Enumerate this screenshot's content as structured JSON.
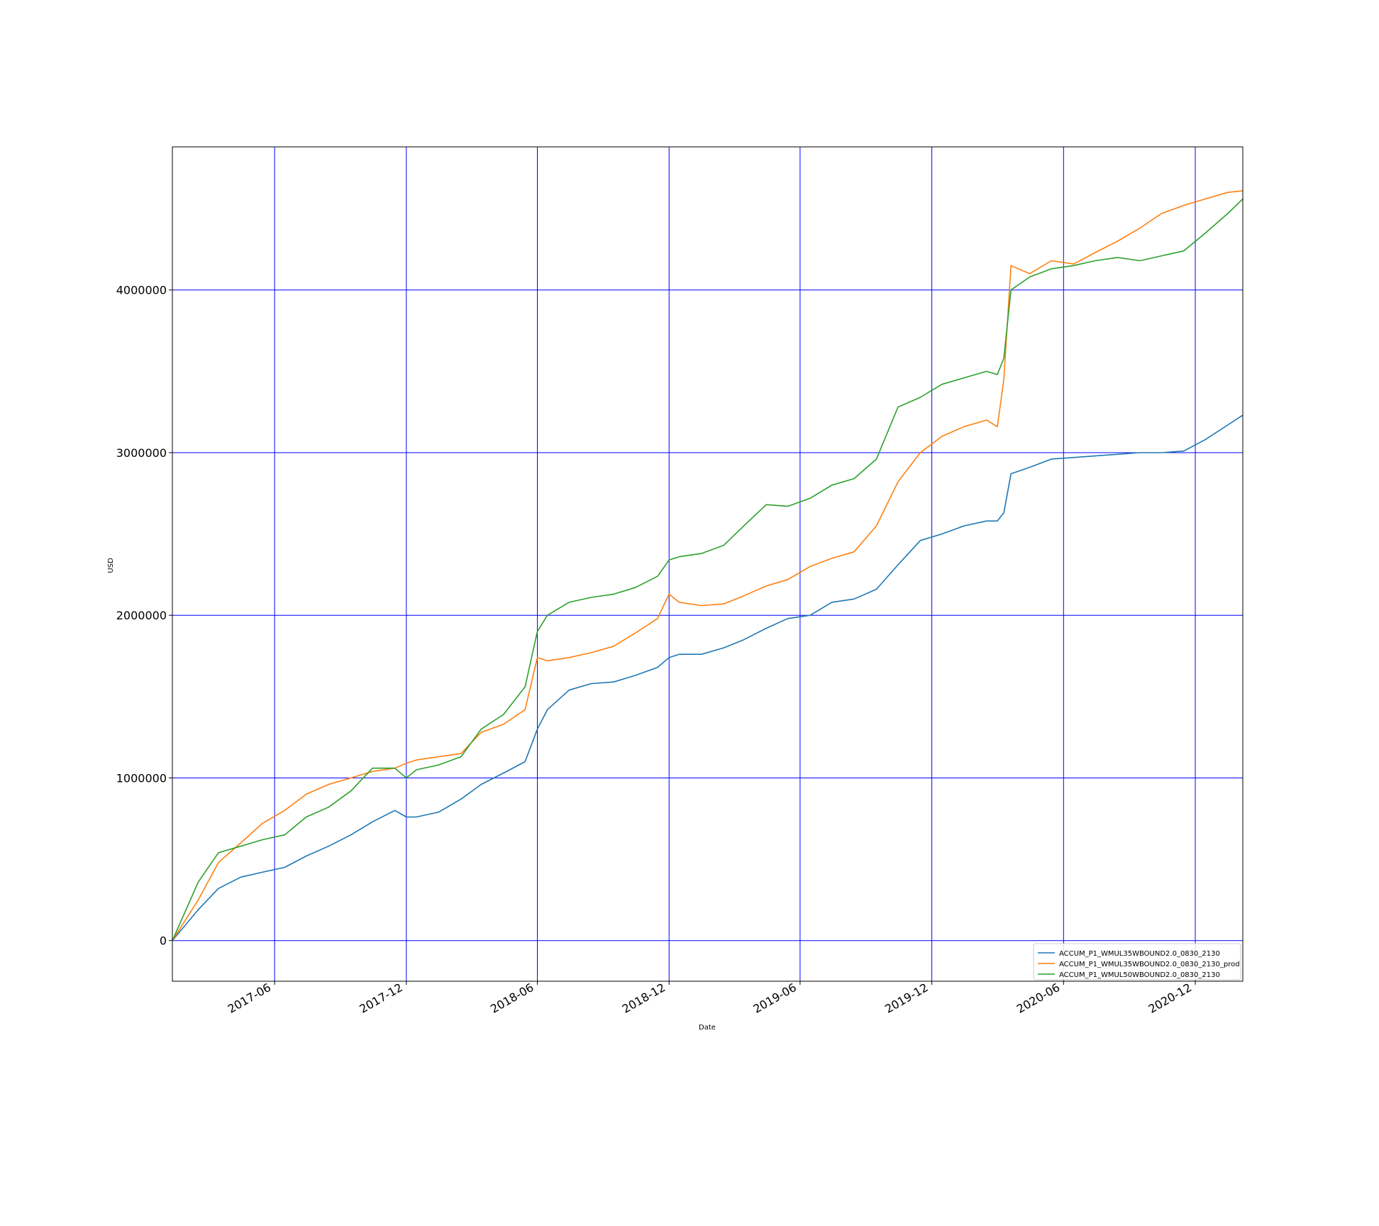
{
  "chart_data": {
    "type": "line",
    "title": "",
    "xlabel": "Date",
    "ylabel": "USD",
    "x_range": [
      "2017-01-10",
      "2021-02-05"
    ],
    "ylim": [
      -250000,
      4880000
    ],
    "grid": true,
    "grid_color": "#0000ff",
    "legend_position": "lower-right",
    "x_ticks": [
      "2017-06",
      "2017-12",
      "2018-06",
      "2018-12",
      "2019-06",
      "2019-12",
      "2020-06",
      "2020-12"
    ],
    "y_ticks": [
      0,
      1000000,
      2000000,
      3000000,
      4000000
    ],
    "y_tick_labels": [
      "0",
      "1000000",
      "2000000",
      "3000000",
      "4000000"
    ],
    "x": [
      "2017-01-10",
      "2017-02-15",
      "2017-03-15",
      "2017-04-15",
      "2017-05-15",
      "2017-06-15",
      "2017-07-15",
      "2017-08-15",
      "2017-09-15",
      "2017-10-15",
      "2017-11-15",
      "2017-12-01",
      "2017-12-15",
      "2018-01-15",
      "2018-02-15",
      "2018-03-15",
      "2018-04-15",
      "2018-05-15",
      "2018-06-01",
      "2018-06-15",
      "2018-07-15",
      "2018-08-15",
      "2018-09-15",
      "2018-10-15",
      "2018-11-15",
      "2018-12-01",
      "2018-12-15",
      "2019-01-15",
      "2019-02-15",
      "2019-03-15",
      "2019-04-15",
      "2019-05-15",
      "2019-06-15",
      "2019-07-15",
      "2019-08-15",
      "2019-09-15",
      "2019-10-15",
      "2019-11-15",
      "2019-12-15",
      "2020-01-15",
      "2020-02-15",
      "2020-03-01",
      "2020-03-10",
      "2020-03-20",
      "2020-04-15",
      "2020-05-15",
      "2020-06-15",
      "2020-07-15",
      "2020-08-15",
      "2020-09-15",
      "2020-10-15",
      "2020-11-15",
      "2020-12-15",
      "2021-01-15",
      "2021-02-05"
    ],
    "series": [
      {
        "name": "ACCUM_P1_WMUL35WBOUND2.0_0830_2130",
        "color": "#1f77b4",
        "values": [
          0,
          190000,
          320000,
          390000,
          420000,
          450000,
          520000,
          580000,
          650000,
          730000,
          800000,
          760000,
          760000,
          790000,
          870000,
          960000,
          1030000,
          1100000,
          1300000,
          1420000,
          1540000,
          1580000,
          1590000,
          1630000,
          1680000,
          1740000,
          1760000,
          1760000,
          1800000,
          1850000,
          1920000,
          1980000,
          2000000,
          2080000,
          2100000,
          2160000,
          2310000,
          2460000,
          2500000,
          2550000,
          2580000,
          2580000,
          2630000,
          2870000,
          2910000,
          2960000,
          2970000,
          2980000,
          2990000,
          3000000,
          3000000,
          3010000,
          3080000,
          3170000,
          3230000
        ]
      },
      {
        "name": "ACCUM_P1_WMUL35WBOUND2.0_0830_2130_prod",
        "color": "#ff7f0e",
        "values": [
          0,
          250000,
          480000,
          600000,
          720000,
          800000,
          900000,
          960000,
          1000000,
          1040000,
          1060000,
          1090000,
          1110000,
          1130000,
          1150000,
          1280000,
          1330000,
          1420000,
          1740000,
          1720000,
          1740000,
          1770000,
          1810000,
          1890000,
          1980000,
          2130000,
          2080000,
          2060000,
          2070000,
          2120000,
          2180000,
          2220000,
          2300000,
          2350000,
          2390000,
          2550000,
          2820000,
          3000000,
          3100000,
          3160000,
          3200000,
          3160000,
          3450000,
          4150000,
          4100000,
          4180000,
          4160000,
          4230000,
          4300000,
          4380000,
          4470000,
          4520000,
          4560000,
          4600000,
          4610000
        ]
      },
      {
        "name": "ACCUM_P1_WMUL50WBOUND2.0_0830_2130",
        "color": "#2ca02c",
        "values": [
          0,
          360000,
          540000,
          580000,
          620000,
          650000,
          760000,
          820000,
          920000,
          1060000,
          1060000,
          1000000,
          1050000,
          1080000,
          1130000,
          1300000,
          1390000,
          1560000,
          1900000,
          2000000,
          2080000,
          2110000,
          2130000,
          2170000,
          2240000,
          2340000,
          2360000,
          2380000,
          2430000,
          2550000,
          2680000,
          2670000,
          2720000,
          2800000,
          2840000,
          2960000,
          3280000,
          3340000,
          3420000,
          3460000,
          3500000,
          3480000,
          3580000,
          4000000,
          4080000,
          4130000,
          4150000,
          4180000,
          4200000,
          4180000,
          4210000,
          4240000,
          4350000,
          4470000,
          4560000
        ]
      }
    ]
  }
}
